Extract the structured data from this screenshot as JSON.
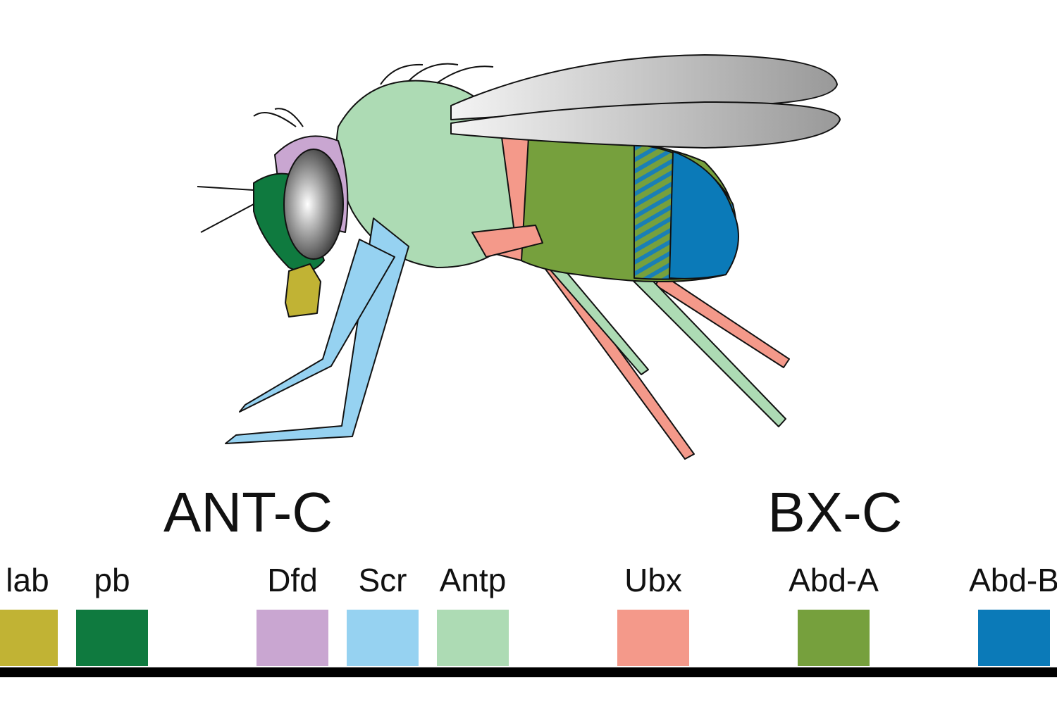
{
  "clusters": [
    {
      "label": "ANT-C"
    },
    {
      "label": "BX-C"
    }
  ],
  "genes": [
    {
      "label": "lab",
      "color": "#c1b334"
    },
    {
      "label": "pb",
      "color": "#0f7a3f"
    },
    {
      "label": "Dfd",
      "color": "#c9a6d1"
    },
    {
      "label": "Scr",
      "color": "#96d2f1"
    },
    {
      "label": "Antp",
      "color": "#addbb4"
    },
    {
      "label": "Ubx",
      "color": "#f4998a"
    },
    {
      "label": "Abd-A",
      "color": "#76a03d"
    },
    {
      "label": "Abd-B",
      "color": "#0b7ab8"
    }
  ]
}
